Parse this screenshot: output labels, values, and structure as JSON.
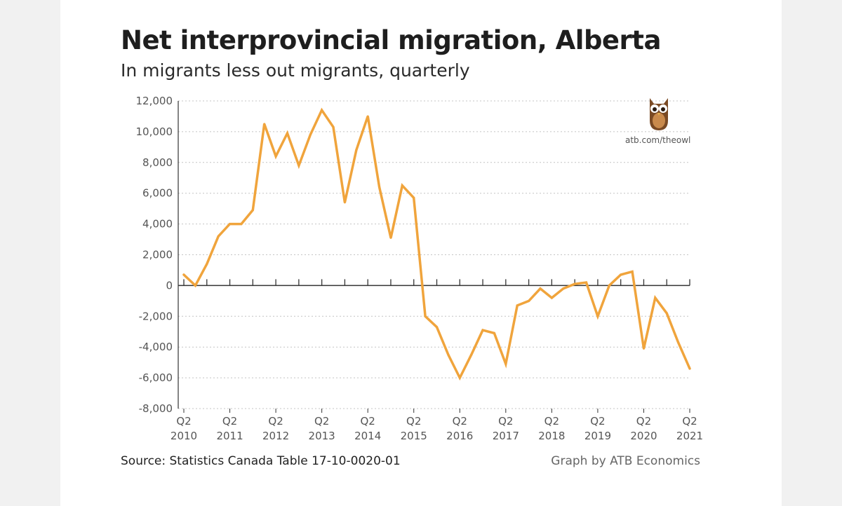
{
  "chart_data": {
    "type": "line",
    "title": "Net interprovincial migration, Alberta",
    "subtitle": "In migrants less out migrants, quarterly",
    "xlabel": "",
    "ylabel": "",
    "ylim": [
      -8000,
      12000
    ],
    "y_ticks": [
      12000,
      10000,
      8000,
      6000,
      4000,
      2000,
      0,
      -2000,
      -4000,
      -6000,
      -8000
    ],
    "y_tick_labels": [
      "12,000",
      "10,000",
      "8,000",
      "6,000",
      "4,000",
      "2,000",
      "0",
      "-2,000",
      "-4,000",
      "-6,000",
      "-8,000"
    ],
    "x_tick_labels": [
      {
        "quarter": "Q2",
        "year": "2010"
      },
      {
        "quarter": "Q2",
        "year": "2011"
      },
      {
        "quarter": "Q2",
        "year": "2012"
      },
      {
        "quarter": "Q2",
        "year": "2013"
      },
      {
        "quarter": "Q2",
        "year": "2014"
      },
      {
        "quarter": "Q2",
        "year": "2015"
      },
      {
        "quarter": "Q2",
        "year": "2016"
      },
      {
        "quarter": "Q2",
        "year": "2017"
      },
      {
        "quarter": "Q2",
        "year": "2018"
      },
      {
        "quarter": "Q2",
        "year": "2019"
      },
      {
        "quarter": "Q2",
        "year": "2020"
      },
      {
        "quarter": "Q2",
        "year": "2021"
      }
    ],
    "grid": true,
    "series": [
      {
        "name": "Net interprovincial migration",
        "color": "#f0a43c",
        "values": [
          700,
          0,
          1400,
          3200,
          4000,
          4000,
          4900,
          10500,
          8400,
          9900,
          7800,
          9800,
          11400,
          10300,
          5400,
          8800,
          11000,
          6400,
          3100,
          6500,
          5700,
          -2000,
          -2700,
          -4500,
          -6000,
          -4500,
          -2900,
          -3100,
          -5100,
          -1300,
          -1000,
          -200,
          -800,
          -200,
          100,
          200,
          -2000,
          0,
          700,
          900,
          -4100,
          -800,
          -1800,
          -3700,
          -5400
        ]
      }
    ]
  },
  "source": "Source: Statistics Canada Table 17-10-0020-01",
  "credit": "Graph by ATB Economics",
  "logo_url": "atb.com/theowl",
  "colors": {
    "line": "#f0a43c",
    "owl_body": "#7a4a24",
    "owl_belly": "#c98a4c",
    "gridline": "#c4c4c4",
    "axis": "#333333"
  }
}
